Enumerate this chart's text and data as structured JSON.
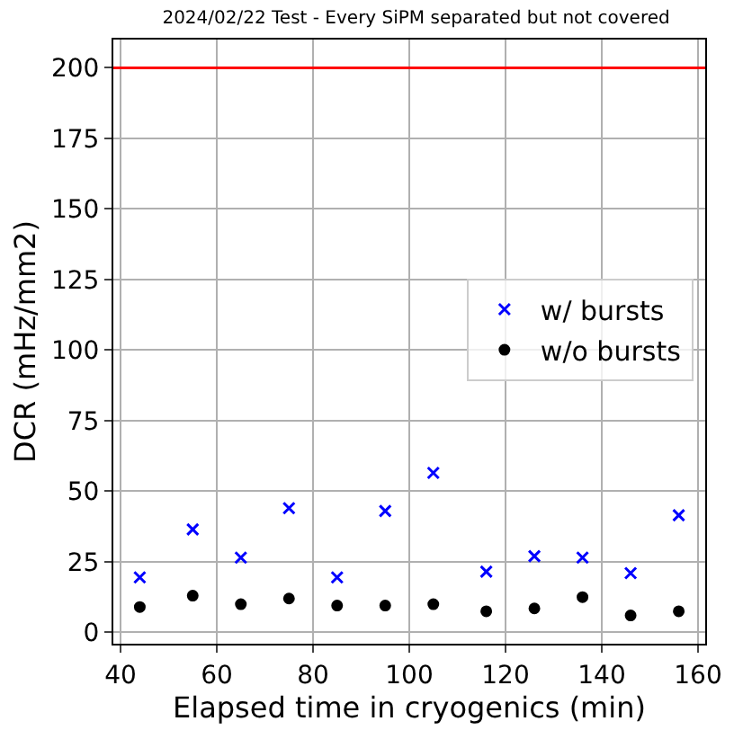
{
  "chart_data": {
    "type": "scatter",
    "title": "2024/02/22 Test - Every SiPM separated but not covered",
    "xlabel": "Elapsed time in cryogenics (min)",
    "ylabel": "DCR (mHz/mm2)",
    "x": [
      44,
      55,
      65,
      75,
      85,
      95,
      105,
      116,
      126,
      136,
      146,
      156
    ],
    "series": [
      {
        "name": "w/ bursts",
        "color": "#0000ff",
        "marker": "cross",
        "values": [
          19.5,
          36.5,
          26.5,
          44,
          19.5,
          43,
          56.5,
          21.5,
          27,
          26.5,
          21,
          41.5
        ]
      },
      {
        "name": "w/o bursts",
        "color": "#000000",
        "marker": "circle",
        "values": [
          9,
          13,
          10,
          12,
          9.5,
          9.5,
          10,
          7.5,
          8.5,
          12.5,
          6,
          7.5
        ]
      }
    ],
    "xlim": [
      38.5,
      161.5
    ],
    "ylim": [
      -4,
      210
    ],
    "xticks": [
      40,
      60,
      80,
      100,
      120,
      140,
      160
    ],
    "yticks": [
      0,
      25,
      50,
      75,
      100,
      125,
      150,
      175,
      200
    ],
    "ref_lines": [
      {
        "axis": "y",
        "value": 200,
        "color": "#ff0000"
      }
    ],
    "grid": true,
    "legend": "right"
  }
}
